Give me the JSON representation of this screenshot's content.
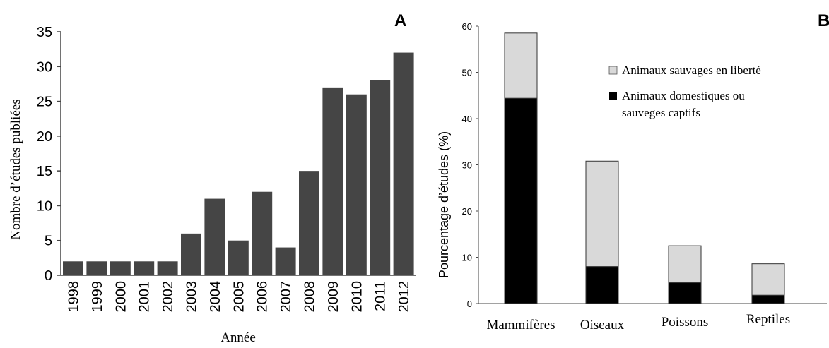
{
  "chart_data": [
    {
      "type": "bar",
      "panel_label": "A",
      "title": "",
      "xlabel": "Année",
      "ylabel": "Nombre d’études publiées",
      "categories": [
        "1998",
        "1999",
        "2000",
        "2001",
        "2002",
        "2003",
        "2004",
        "2005",
        "2006",
        "2007",
        "2008",
        "2009",
        "2010",
        "2011",
        "2012"
      ],
      "values": [
        2,
        2,
        2,
        2,
        2,
        6,
        11,
        5,
        12,
        4,
        15,
        27,
        26,
        28,
        32
      ],
      "ylim": [
        0,
        35
      ],
      "yticks": [
        0,
        5,
        10,
        15,
        20,
        25,
        30,
        35
      ],
      "grid": false,
      "bar_color": "#454545"
    },
    {
      "type": "bar",
      "stacked": true,
      "panel_label": "B",
      "title": "",
      "xlabel": "",
      "ylabel": "Pourcentage d’études (%)",
      "categories": [
        "Mammifères",
        "Oiseaux",
        "Poissons",
        "Reptiles"
      ],
      "series": [
        {
          "name": "Animaux domestiques ou sauveges captifs",
          "values": [
            44.4,
            8,
            4.5,
            1.8
          ],
          "color": "#000000"
        },
        {
          "name": "Animaux sauvages en liberté",
          "values": [
            14.1,
            22.8,
            8,
            6.8
          ],
          "color": "#d9d9d9"
        }
      ],
      "ylim": [
        0,
        60
      ],
      "yticks": [
        0,
        10,
        20,
        30,
        40,
        50,
        60
      ],
      "grid": false,
      "legend_position": "top-right"
    }
  ]
}
